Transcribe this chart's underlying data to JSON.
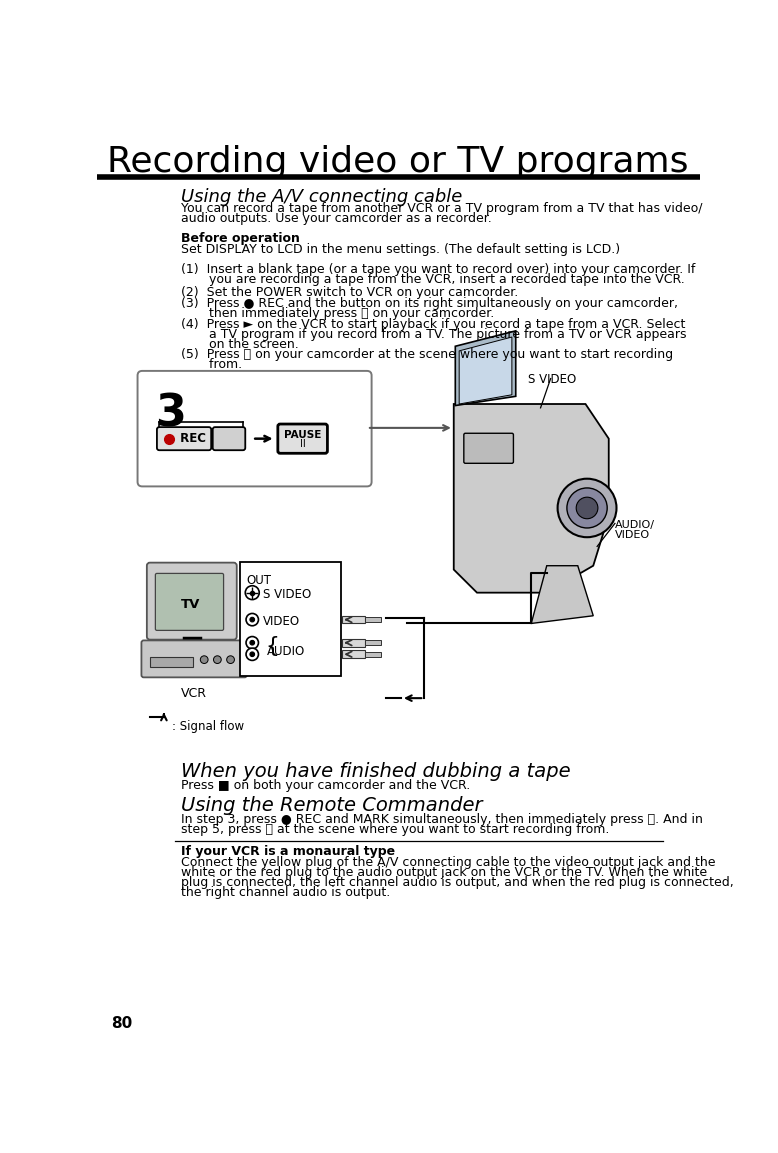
{
  "page_number": "80",
  "title": "Recording video or TV programs",
  "bg_color": "#ffffff",
  "title_font_size": 26,
  "subtitle1": "Using the A/V connecting cable",
  "subtitle1_font_size": 13,
  "body_font_size": 9.0,
  "body1_line1": "You can record a tape from another VCR or a TV program from a TV that has video/",
  "body1_line2": "audio outputs. Use your camcorder as a recorder.",
  "before_op_label": "Before operation",
  "before_op_text": "Set DISPLAY to LCD in the menu settings. (The default setting is LCD.)",
  "step1a": "(1)  Insert a blank tape (or a tape you want to record over) into your camcorder. If",
  "step1b": "       you are recording a tape from the VCR, insert a recorded tape into the VCR.",
  "step2": "(2)  Set the POWER switch to VCR on your camcorder.",
  "step3a": "(3)  Press ● REC and the button on its right simultaneously on your camcorder,",
  "step3b": "       then immediately press ⏸ on your camcorder.",
  "step4a": "(4)  Press ► on the VCR to start playback if you record a tape from a VCR. Select",
  "step4b": "       a TV program if you record from a TV. The picture from a TV or VCR appears",
  "step4c": "       on the screen.",
  "step5a": "(5)  Press ⏸ on your camcorder at the scene where you want to start recording",
  "step5b": "       from.",
  "dubbing_title": "When you have finished dubbing a tape",
  "dubbing_title_font_size": 14,
  "dubbing_text": "Press ■ on both your camcorder and the VCR.",
  "remote_title": "Using the Remote Commander",
  "remote_title_font_size": 14,
  "remote_text1": "In step 3, press ● REC and MARK simultaneously, then immediately press ⏸. And in",
  "remote_text2": "step 5, press ⏸ at the scene where you want to start recording from.",
  "monaural_title": "If your VCR is a monaural type",
  "monaural_text1": "Connect the yellow plug of the A/V connecting cable to the video output jack and the",
  "monaural_text2": "white or the red plug to the audio output jack on the VCR or the TV. When the white",
  "monaural_text3": "plug is connected, the left channel audio is output, and when the red plug is connected,",
  "monaural_text4": "the right channel audio is output.",
  "signal_flow_text": ": Signal flow",
  "s_video_label": "S VIDEO",
  "audio_video_label1": "AUDIO/",
  "audio_video_label2": "VIDEO",
  "out_label": "OUT",
  "s_video_out": "S VIDEO",
  "video_out": "VIDEO",
  "audio_out": "AUDIO",
  "tv_label": "TV",
  "vcr_label": "VCR"
}
